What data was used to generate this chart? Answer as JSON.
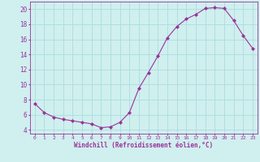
{
  "x": [
    0,
    1,
    2,
    3,
    4,
    5,
    6,
    7,
    8,
    9,
    10,
    11,
    12,
    13,
    14,
    15,
    16,
    17,
    18,
    19,
    20,
    21,
    22,
    23
  ],
  "y": [
    7.5,
    6.3,
    5.7,
    5.4,
    5.2,
    5.0,
    4.8,
    4.3,
    4.4,
    5.0,
    6.3,
    9.5,
    11.6,
    13.8,
    16.2,
    17.7,
    18.7,
    19.3,
    20.1,
    20.2,
    20.1,
    18.5,
    16.5,
    14.8
  ],
  "line_color": "#993399",
  "marker": "D",
  "marker_size": 2,
  "bg_color": "#d0efef",
  "grid_color": "#aadddd",
  "xlabel": "Windchill (Refroidissement éolien,°C)",
  "xlabel_color": "#993399",
  "ylabel_ticks": [
    4,
    6,
    8,
    10,
    12,
    14,
    16,
    18,
    20
  ],
  "xlim": [
    -0.5,
    23.5
  ],
  "ylim": [
    3.5,
    21.0
  ],
  "xticks": [
    0,
    1,
    2,
    3,
    4,
    5,
    6,
    7,
    8,
    9,
    10,
    11,
    12,
    13,
    14,
    15,
    16,
    17,
    18,
    19,
    20,
    21,
    22,
    23
  ],
  "tick_color": "#993399"
}
